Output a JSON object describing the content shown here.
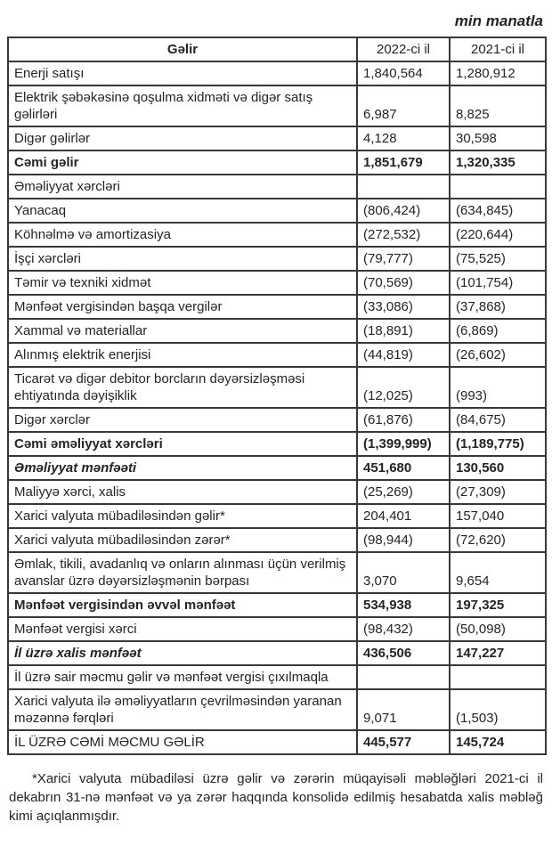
{
  "units_label": "min manatla",
  "table": {
    "columns": [
      "Gəlir",
      "2022-ci il",
      "2021-ci il"
    ],
    "rows": [
      {
        "label": "Enerji satışı",
        "v2022": "1,840,564",
        "v2021": "1,280,912",
        "style": "normal"
      },
      {
        "label": "Elektrik şəbəkəsinə qoşulma xidməti və digər satış gəlirləri",
        "v2022": "6,987",
        "v2021": "8,825",
        "style": "normal"
      },
      {
        "label": "Digər gəlirlər",
        "v2022": "4,128",
        "v2021": "30,598",
        "style": "normal"
      },
      {
        "label": "Cəmi gəlir",
        "v2022": "1,851,679",
        "v2021": "1,320,335",
        "style": "bold"
      },
      {
        "label": "Əməliyyat xərcləri",
        "v2022": "",
        "v2021": "",
        "style": "normal"
      },
      {
        "label": "Yanacaq",
        "v2022": "(806,424)",
        "v2021": "(634,845)",
        "style": "normal"
      },
      {
        "label": "Köhnəlmə və amortizasiya",
        "v2022": "(272,532)",
        "v2021": "(220,644)",
        "style": "normal"
      },
      {
        "label": "İşçi xərcləri",
        "v2022": "(79,777)",
        "v2021": "(75,525)",
        "style": "normal"
      },
      {
        "label": "Təmir və texniki xidmət",
        "v2022": "(70,569)",
        "v2021": "(101,754)",
        "style": "normal"
      },
      {
        "label": "Mənfəət vergisindən başqa vergilər",
        "v2022": "(33,086)",
        "v2021": "(37,868)",
        "style": "normal"
      },
      {
        "label": "Xammal və materiallar",
        "v2022": "(18,891)",
        "v2021": "(6,869)",
        "style": "normal"
      },
      {
        "label": "Alınmış elektrik enerjisi",
        "v2022": "(44,819)",
        "v2021": "(26,602)",
        "style": "normal"
      },
      {
        "label": "Ticarət və digər debitor borcların dəyərsizləşməsi ehtiyatında dəyişiklik",
        "v2022": "(12,025)",
        "v2021": "(993)",
        "style": "normal"
      },
      {
        "label": "Digər xərclər",
        "v2022": "(61,876)",
        "v2021": "(84,675)",
        "style": "normal"
      },
      {
        "label": "Cəmi əməliyyat xərcləri",
        "v2022": "(1,399,999)",
        "v2021": "(1,189,775)",
        "style": "bold"
      },
      {
        "label": "Əməliyyat mənfəəti",
        "v2022": "451,680",
        "v2021": "130,560",
        "style": "bold-italic-label"
      },
      {
        "label": "Maliyyə xərci, xalis",
        "v2022": "(25,269)",
        "v2021": "(27,309)",
        "style": "normal"
      },
      {
        "label": "Xarici valyuta mübadiləsindən gəlir*",
        "v2022": "204,401",
        "v2021": "157,040",
        "style": "normal"
      },
      {
        "label": "Xarici valyuta mübadiləsindən zərər*",
        "v2022": "(98,944)",
        "v2021": "(72,620)",
        "style": "normal"
      },
      {
        "label": "Əmlak, tikili, avadanlıq və onların alınması üçün verilmiş avanslar üzrə dəyərsizləşmənin bərpası",
        "v2022": "3,070",
        "v2021": "9,654",
        "style": "normal"
      },
      {
        "label": "Mənfəət vergisindən əvvəl mənfəət",
        "v2022": "534,938",
        "v2021": "197,325",
        "style": "bold"
      },
      {
        "label": "Mənfəət vergisi xərci",
        "v2022": "(98,432)",
        "v2021": "(50,098)",
        "style": "normal"
      },
      {
        "label": "İl üzrə xalis mənfəət",
        "v2022": "436,506",
        "v2021": "147,227",
        "style": "bold-italic-label"
      },
      {
        "label": "İl üzrə sair məcmu gəlir və mənfəət vergisi çıxılmaqla",
        "v2022": "",
        "v2021": "",
        "style": "normal"
      },
      {
        "label": "Xarici valyuta ilə əməliyyatların çevrilməsindən yaranan məzənnə fərqləri",
        "v2022": "9,071",
        "v2021": "(1,503)",
        "style": "normal"
      },
      {
        "label": "İL ÜZRƏ CƏMİ MƏCMU GƏLİR",
        "v2022": "445,577",
        "v2021": "145,724",
        "style": "bold-values"
      }
    ]
  },
  "footnote": "*Xarici valyuta mübadiləsi üzrə gəlir və zərərin müqayisəli məbləğləri 2021-ci il dekabrın 31-nə mənfəət və ya zərər haqqında konsolidə edilmiş hesabatda xalis məbləğ kimi açıqlanmışdır."
}
